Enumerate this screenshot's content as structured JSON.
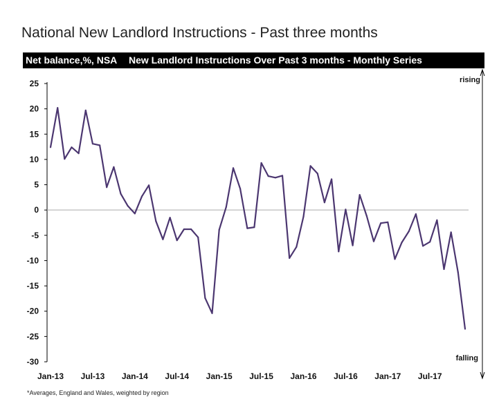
{
  "page": {
    "title": "National New Landlord Instructions - Past three months",
    "footnote": "*Averages,  England and Wales, weighted by region"
  },
  "header": {
    "left_label": "Net balance,%, NSA",
    "right_label": "New Landlord Instructions Over Past 3 months - Monthly Series"
  },
  "chart_data": {
    "type": "line",
    "title": "New Landlord Instructions Over Past 3 months - Monthly Series",
    "ylabel": "Net balance,%, NSA",
    "xlabel": "",
    "ylim": [
      -30,
      25
    ],
    "yticks": [
      "25",
      "20",
      "15",
      "10",
      "5",
      "0",
      "-5",
      "-10",
      "-15",
      "-20",
      "-25",
      "-30"
    ],
    "xticks": [
      "Jan-13",
      "Jul-13",
      "Jan-14",
      "Jul-14",
      "Jan-15",
      "Jul-15",
      "Jan-16",
      "Jul-16",
      "Jan-17",
      "Jul-17"
    ],
    "grid": false,
    "zero_line": true,
    "annotations": {
      "top": "rising",
      "bottom": "falling"
    },
    "colors": {
      "line": "#4b3670",
      "zero_line": "#aaaaaa",
      "axis": "#000000"
    },
    "series": [
      {
        "x": [
          "Jan-13",
          "Feb-13",
          "Mar-13",
          "Apr-13",
          "May-13",
          "Jun-13",
          "Jul-13",
          "Aug-13",
          "Sep-13",
          "Oct-13",
          "Nov-13",
          "Dec-13",
          "Jan-14",
          "Feb-14",
          "Mar-14",
          "Apr-14",
          "May-14",
          "Jun-14",
          "Jul-14",
          "Aug-14",
          "Sep-14",
          "Oct-14",
          "Nov-14",
          "Dec-14",
          "Jan-15",
          "Feb-15",
          "Mar-15",
          "Apr-15",
          "May-15",
          "Jun-15",
          "Jul-15",
          "Aug-15",
          "Sep-15",
          "Oct-15",
          "Nov-15",
          "Dec-15",
          "Jan-16",
          "Feb-16",
          "Mar-16",
          "Apr-16",
          "May-16",
          "Jun-16",
          "Jul-16",
          "Aug-16",
          "Sep-16",
          "Oct-16",
          "Nov-16",
          "Dec-16",
          "Jan-17",
          "Feb-17",
          "Mar-17",
          "Apr-17",
          "May-17",
          "Jun-17",
          "Jul-17",
          "Aug-17",
          "Sep-17",
          "Oct-17",
          "Nov-17",
          "Dec-17"
        ],
        "values": [
          12.4,
          20.2,
          10.1,
          12.4,
          11.2,
          19.7,
          13.1,
          12.8,
          4.5,
          8.5,
          3.2,
          0.8,
          -0.7,
          2.7,
          4.9,
          -2.2,
          -5.8,
          -1.5,
          -6.0,
          -3.8,
          -3.8,
          -5.4,
          -17.4,
          -20.4,
          -3.9,
          0.6,
          8.3,
          4.2,
          -3.6,
          -3.4,
          9.3,
          6.7,
          6.4,
          6.8,
          -9.5,
          -7.3,
          -1.3,
          8.7,
          7.2,
          1.5,
          6.1,
          -8.2,
          0.1,
          -7.0,
          3.0,
          -1.2,
          -6.2,
          -2.6,
          -2.4,
          -9.7,
          -6.4,
          -4.2,
          -0.8,
          -7.1,
          -6.3,
          -2.0,
          -11.7,
          -4.4,
          -12.3,
          -23.5
        ]
      }
    ]
  }
}
